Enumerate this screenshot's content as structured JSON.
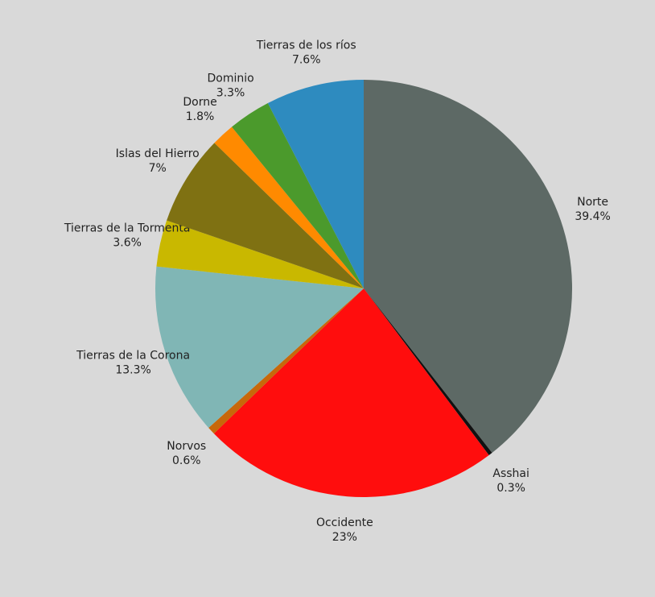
{
  "chart_data": {
    "type": "pie",
    "categories": [
      "Norte",
      "Asshai",
      "Occidente",
      "Norvos",
      "Tierras de la Corona",
      "Tierras de la Tormenta",
      "Islas del Hierro",
      "Dorne",
      "Dominio",
      "Tierras de los ríos"
    ],
    "values": [
      39.4,
      0.3,
      23,
      0.6,
      13.3,
      3.6,
      7,
      1.8,
      3.3,
      7.6
    ],
    "value_labels": [
      "39.4%",
      "0.3%",
      "23%",
      "0.6%",
      "13.3%",
      "3.6%",
      "7%",
      "1.8%",
      "3.3%",
      "7.6%"
    ],
    "colors": [
      "#5d6965",
      "#111111",
      "#ff0d0d",
      "#c8680a",
      "#80b6b5",
      "#c9b800",
      "#7f7112",
      "#ff8a00",
      "#4b9a2c",
      "#2e8bbf"
    ]
  }
}
